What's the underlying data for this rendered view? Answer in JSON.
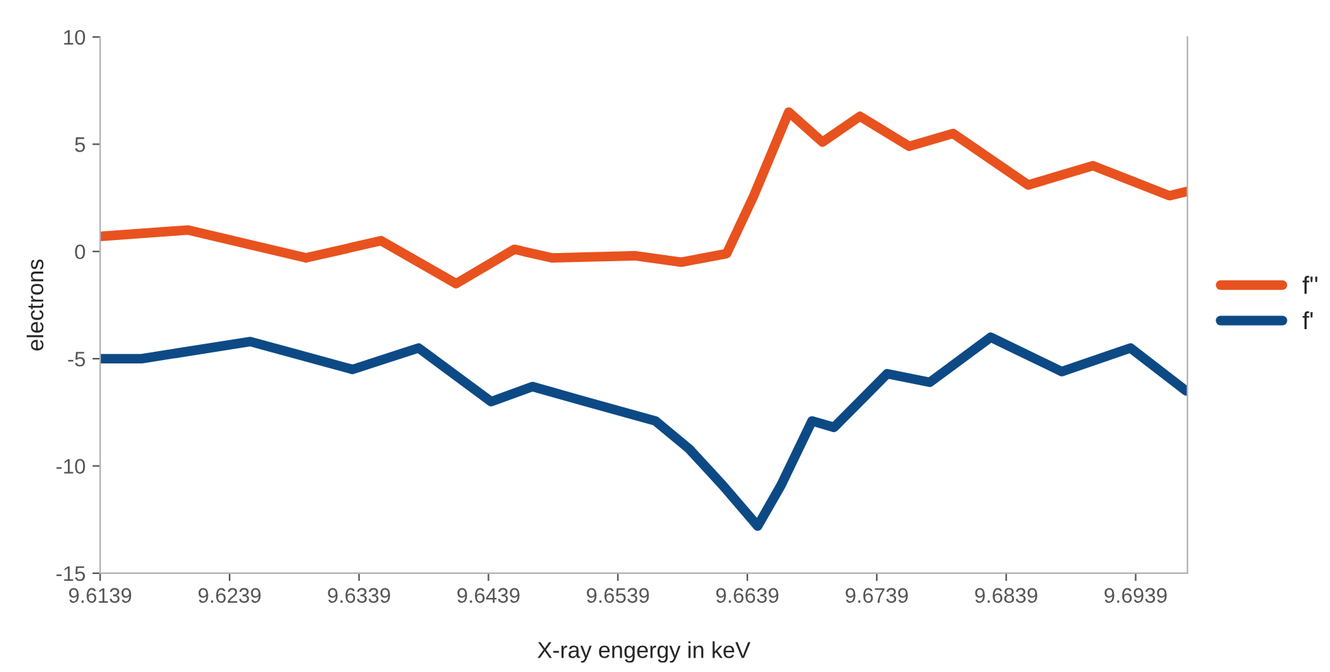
{
  "chart_data": {
    "type": "line",
    "xlabel": "X-ray engergy in keV",
    "ylabel": "electrons",
    "xlim": [
      9.6139,
      9.6979
    ],
    "xticks": [
      9.6139,
      9.6239,
      9.6339,
      9.6439,
      9.6539,
      9.6639,
      9.6739,
      9.6839,
      9.6939
    ],
    "ylim": [
      -15,
      10
    ],
    "yticks": [
      -15,
      -10,
      -5,
      0,
      5,
      10
    ],
    "grid": false,
    "legend": "right",
    "marker": "none",
    "line_style": "solid",
    "series": [
      {
        "name": "f''",
        "color": "#e8521f",
        "x": [
          9.6139,
          9.6207,
          9.6298,
          9.6356,
          9.6414,
          9.6459,
          9.6488,
          9.6552,
          9.6588,
          9.6623,
          9.6644,
          9.6671,
          9.6697,
          9.6726,
          9.6764,
          9.6798,
          9.6856,
          9.6906,
          9.6965,
          9.6979
        ],
        "values": [
          0.7,
          1.0,
          -0.3,
          0.5,
          -1.5,
          0.1,
          -0.3,
          -0.2,
          -0.5,
          -0.1,
          2.6,
          6.5,
          5.1,
          6.3,
          4.9,
          5.5,
          3.1,
          4.0,
          2.6,
          2.8
        ]
      },
      {
        "name": "f'",
        "color": "#0d4a85",
        "x": [
          9.6139,
          9.6171,
          9.6255,
          9.6334,
          9.6385,
          9.6441,
          9.6473,
          9.6514,
          9.6568,
          9.6594,
          9.662,
          9.6647,
          9.6665,
          9.6689,
          9.6706,
          9.6747,
          9.678,
          9.6827,
          9.6882,
          9.6935,
          9.6978
        ],
        "values": [
          -5.0,
          -5.0,
          -4.2,
          -5.5,
          -4.5,
          -7.0,
          -6.3,
          -7.0,
          -7.9,
          -9.2,
          -10.9,
          -12.8,
          -10.9,
          -7.9,
          -8.2,
          -5.7,
          -6.1,
          -4.0,
          -5.6,
          -4.5,
          -6.5
        ]
      }
    ]
  }
}
